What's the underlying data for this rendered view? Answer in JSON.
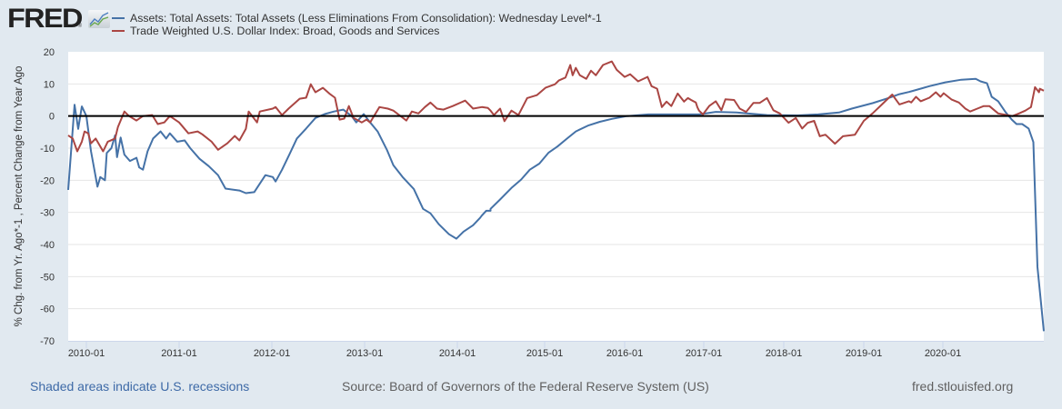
{
  "header": {
    "logo_text": "FRED",
    "logo_reg": "®",
    "logo_icon": "line-chart-icon"
  },
  "legend": [
    {
      "label": "Assets: Total Assets: Total Assets (Less Eliminations From Consolidation): Wednesday Level*-1",
      "color": "#4572a7"
    },
    {
      "label": "Trade Weighted U.S. Dollar Index: Broad, Goods and Services",
      "color": "#aa4643"
    }
  ],
  "footer": {
    "recessions_note": "Shaded areas indicate U.S. recessions",
    "source": "Source: Board of Governors of the Federal Reserve System (US)",
    "site": "fred.stlouisfed.org"
  },
  "chart_data": {
    "type": "line",
    "title": "",
    "xlabel": "",
    "ylabel": "% Chg. from Yr. Ago*-1 , Percent Change from Year Ago",
    "ylim": [
      -70,
      20
    ],
    "xlim": [
      "2009-10",
      "2020-04"
    ],
    "yticks": [
      20,
      10,
      0,
      -10,
      -20,
      -30,
      -40,
      -50,
      -60,
      -70
    ],
    "xticks": [
      "2010-01",
      "2011-01",
      "2012-01",
      "2013-01",
      "2014-01",
      "2015-01",
      "2016-01",
      "2017-01",
      "2018-01",
      "2019-01",
      "2020-01"
    ],
    "grid": true,
    "zero_line": true,
    "legend_position": "top",
    "series": [
      {
        "name": "Assets: Total Assets: Total Assets (Less Eliminations From Consolidation): Wednesday Level*-1",
        "color": "#4572a7",
        "points": [
          [
            2009.8,
            -23
          ],
          [
            2009.87,
            3.5
          ],
          [
            2009.91,
            -4
          ],
          [
            2009.95,
            3
          ],
          [
            2010.0,
            0
          ],
          [
            2010.05,
            -11
          ],
          [
            2010.12,
            -22
          ],
          [
            2010.15,
            -19
          ],
          [
            2010.2,
            -20
          ],
          [
            2010.22,
            -11.5
          ],
          [
            2010.27,
            -10
          ],
          [
            2010.31,
            -6
          ],
          [
            2010.33,
            -12.8
          ],
          [
            2010.37,
            -6.7
          ],
          [
            2010.41,
            -12
          ],
          [
            2010.47,
            -14
          ],
          [
            2010.54,
            -13
          ],
          [
            2010.57,
            -16
          ],
          [
            2010.61,
            -16.7
          ],
          [
            2010.66,
            -11
          ],
          [
            2010.72,
            -7
          ],
          [
            2010.8,
            -4.8
          ],
          [
            2010.86,
            -7
          ],
          [
            2010.9,
            -5.4
          ],
          [
            2010.98,
            -8
          ],
          [
            2011.06,
            -7.6
          ],
          [
            2011.12,
            -10
          ],
          [
            2011.22,
            -13.3
          ],
          [
            2011.32,
            -15.6
          ],
          [
            2011.42,
            -18.4
          ],
          [
            2011.5,
            -22.6
          ],
          [
            2011.65,
            -23.2
          ],
          [
            2011.72,
            -24
          ],
          [
            2011.81,
            -23.7
          ],
          [
            2011.93,
            -18.4
          ],
          [
            2012.01,
            -19
          ],
          [
            2012.04,
            -20.4
          ],
          [
            2012.11,
            -16.7
          ],
          [
            2012.19,
            -11.9
          ],
          [
            2012.27,
            -7
          ],
          [
            2012.37,
            -3.9
          ],
          [
            2012.47,
            -0.6
          ],
          [
            2012.57,
            0.6
          ],
          [
            2012.67,
            1.4
          ],
          [
            2012.77,
            2
          ],
          [
            2012.86,
            0
          ],
          [
            2012.91,
            -2
          ],
          [
            2012.99,
            0.6
          ],
          [
            2013.06,
            -2
          ],
          [
            2013.14,
            -4.8
          ],
          [
            2013.24,
            -10.5
          ],
          [
            2013.31,
            -15.3
          ],
          [
            2013.41,
            -19
          ],
          [
            2013.53,
            -22.7
          ],
          [
            2013.63,
            -28.9
          ],
          [
            2013.71,
            -30.3
          ],
          [
            2013.8,
            -33.7
          ],
          [
            2013.91,
            -36.8
          ],
          [
            2013.99,
            -38.2
          ],
          [
            2014.07,
            -36
          ],
          [
            2014.18,
            -34
          ],
          [
            2014.26,
            -31.7
          ],
          [
            2014.33,
            -29.5
          ],
          [
            2014.38,
            -29.5
          ],
          [
            2014.28,
            -31
          ],
          [
            2014.38,
            -28.9
          ],
          [
            2014.49,
            -26
          ],
          [
            2014.62,
            -22.4
          ],
          [
            2014.73,
            -19.8
          ],
          [
            2014.83,
            -16.7
          ],
          [
            2014.94,
            -14.8
          ],
          [
            2015.05,
            -11.4
          ],
          [
            2015.16,
            -9.5
          ],
          [
            2015.27,
            -7.2
          ],
          [
            2015.39,
            -4.8
          ],
          [
            2015.55,
            -2.9
          ],
          [
            2015.69,
            -1.8
          ],
          [
            2015.84,
            -0.9
          ],
          [
            2016.03,
            0
          ],
          [
            2016.3,
            0.5
          ],
          [
            2016.63,
            0.5
          ],
          [
            2016.94,
            0.5
          ],
          [
            2017.15,
            1.3
          ],
          [
            2017.41,
            1.1
          ],
          [
            2017.79,
            0.3
          ],
          [
            2018.17,
            0.2
          ],
          [
            2018.43,
            0.5
          ],
          [
            2018.69,
            1.1
          ],
          [
            2018.85,
            2.3
          ],
          [
            2019.11,
            4
          ],
          [
            2019.31,
            5.6
          ],
          [
            2019.57,
            7.5
          ],
          [
            2019.45,
            6.8
          ],
          [
            2019.6,
            7.7
          ],
          [
            2019.83,
            9.3
          ],
          [
            2020.03,
            10.5
          ],
          [
            2020.23,
            11.3
          ],
          [
            2020.41,
            11.6
          ],
          [
            2020.47,
            10.8
          ],
          [
            2020.55,
            10.2
          ],
          [
            2020.61,
            6
          ],
          [
            2020.69,
            4.6
          ],
          [
            2020.78,
            1.3
          ],
          [
            2020.86,
            -1.1
          ],
          [
            2020.92,
            -2.5
          ],
          [
            2020.99,
            -2.5
          ],
          [
            2021.07,
            -3.9
          ],
          [
            2021.13,
            -8.1
          ],
          [
            2021.18,
            -47
          ],
          [
            2021.26,
            -67
          ]
        ]
      },
      {
        "name": "Trade Weighted U.S. Dollar Index: Broad, Goods and Services",
        "color": "#aa4643",
        "points": [
          [
            2009.8,
            -6
          ],
          [
            2009.85,
            -7
          ],
          [
            2009.9,
            -11
          ],
          [
            2009.95,
            -8
          ],
          [
            2009.98,
            -4.8
          ],
          [
            2010.02,
            -5.4
          ],
          [
            2010.05,
            -8.5
          ],
          [
            2010.1,
            -7
          ],
          [
            2010.18,
            -11
          ],
          [
            2010.23,
            -8
          ],
          [
            2010.31,
            -7
          ],
          [
            2010.34,
            -3.4
          ],
          [
            2010.41,
            1.4
          ],
          [
            2010.46,
            0
          ],
          [
            2010.54,
            -1.4
          ],
          [
            2010.61,
            0
          ],
          [
            2010.71,
            0.3
          ],
          [
            2010.77,
            -2.5
          ],
          [
            2010.84,
            -2
          ],
          [
            2010.9,
            0
          ],
          [
            2011.0,
            -2
          ],
          [
            2011.1,
            -5.4
          ],
          [
            2011.2,
            -4.8
          ],
          [
            2011.25,
            -5.7
          ],
          [
            2011.35,
            -8
          ],
          [
            2011.42,
            -10.5
          ],
          [
            2011.52,
            -8.5
          ],
          [
            2011.6,
            -6.2
          ],
          [
            2011.65,
            -7.6
          ],
          [
            2011.72,
            -4
          ],
          [
            2011.75,
            1.4
          ],
          [
            2011.84,
            -2
          ],
          [
            2011.87,
            1.4
          ],
          [
            2012.01,
            2.3
          ],
          [
            2012.04,
            2.8
          ],
          [
            2012.11,
            0.3
          ],
          [
            2012.18,
            2.3
          ],
          [
            2012.3,
            5.4
          ],
          [
            2012.37,
            5.7
          ],
          [
            2012.42,
            9.9
          ],
          [
            2012.47,
            7.4
          ],
          [
            2012.55,
            8.8
          ],
          [
            2012.62,
            7
          ],
          [
            2012.68,
            5.7
          ],
          [
            2012.73,
            -1.1
          ],
          [
            2012.78,
            -0.8
          ],
          [
            2012.83,
            3.1
          ],
          [
            2012.88,
            -0.6
          ],
          [
            2012.97,
            -2
          ],
          [
            2013.02,
            -1.1
          ],
          [
            2013.06,
            -2
          ],
          [
            2013.16,
            2.8
          ],
          [
            2013.25,
            2.3
          ],
          [
            2013.31,
            1.7
          ],
          [
            2013.45,
            -1.4
          ],
          [
            2013.51,
            1.4
          ],
          [
            2013.58,
            0.8
          ],
          [
            2013.65,
            2.8
          ],
          [
            2013.71,
            4.2
          ],
          [
            2013.78,
            2.3
          ],
          [
            2013.85,
            2
          ],
          [
            2013.95,
            3.1
          ],
          [
            2014.09,
            4.8
          ],
          [
            2014.18,
            2.3
          ],
          [
            2014.28,
            2.8
          ],
          [
            2014.38,
            1.7
          ],
          [
            2014.35,
            2.5
          ],
          [
            2014.42,
            0.3
          ],
          [
            2014.49,
            2.3
          ],
          [
            2014.54,
            -1.6
          ],
          [
            2014.62,
            1.7
          ],
          [
            2014.7,
            0.3
          ],
          [
            2014.8,
            5.6
          ],
          [
            2014.91,
            6.5
          ],
          [
            2015.01,
            8.8
          ],
          [
            2015.13,
            9.9
          ],
          [
            2015.18,
            11.1
          ],
          [
            2015.26,
            12
          ],
          [
            2015.32,
            15.9
          ],
          [
            2015.35,
            12.7
          ],
          [
            2015.39,
            15
          ],
          [
            2015.44,
            12.7
          ],
          [
            2015.52,
            11.6
          ],
          [
            2015.58,
            14.1
          ],
          [
            2015.64,
            12.7
          ],
          [
            2015.73,
            15.9
          ],
          [
            2015.84,
            17
          ],
          [
            2015.9,
            14.4
          ],
          [
            2016.0,
            12.2
          ],
          [
            2016.07,
            13
          ],
          [
            2016.17,
            10.8
          ],
          [
            2016.29,
            12.2
          ],
          [
            2016.34,
            9.3
          ],
          [
            2016.41,
            8.5
          ],
          [
            2016.47,
            2.8
          ],
          [
            2016.53,
            4.5
          ],
          [
            2016.59,
            3.1
          ],
          [
            2016.67,
            7
          ],
          [
            2016.75,
            4.5
          ],
          [
            2016.8,
            5.6
          ],
          [
            2016.9,
            4.2
          ],
          [
            2016.94,
            1.7
          ],
          [
            2016.84,
            5
          ],
          [
            2016.92,
            2.7
          ],
          [
            2016.99,
            0.5
          ],
          [
            2017.07,
            3.2
          ],
          [
            2017.15,
            4.6
          ],
          [
            2017.22,
            1.8
          ],
          [
            2017.27,
            5.2
          ],
          [
            2017.38,
            5
          ],
          [
            2017.45,
            2.3
          ],
          [
            2017.53,
            1.3
          ],
          [
            2017.62,
            4.1
          ],
          [
            2017.7,
            4.1
          ],
          [
            2017.79,
            5.6
          ],
          [
            2017.87,
            1.8
          ],
          [
            2017.95,
            0.8
          ],
          [
            2018.06,
            -2.1
          ],
          [
            2018.15,
            -0.6
          ],
          [
            2018.23,
            -3.9
          ],
          [
            2018.3,
            -2.1
          ],
          [
            2018.38,
            -1.5
          ],
          [
            2018.45,
            -6.3
          ],
          [
            2018.52,
            -5.8
          ],
          [
            2018.64,
            -8.6
          ],
          [
            2018.74,
            -6.3
          ],
          [
            2018.89,
            -5.8
          ],
          [
            2019.0,
            -1.5
          ],
          [
            2019.11,
            0.8
          ],
          [
            2019.23,
            3.6
          ],
          [
            2019.36,
            6.7
          ],
          [
            2019.45,
            3.6
          ],
          [
            2019.57,
            4.6
          ],
          [
            2019.6,
            4.2
          ],
          [
            2019.66,
            6
          ],
          [
            2019.72,
            4.6
          ],
          [
            2019.83,
            5.7
          ],
          [
            2019.91,
            7.4
          ],
          [
            2019.97,
            6
          ],
          [
            2020.01,
            7.1
          ],
          [
            2020.11,
            5.1
          ],
          [
            2020.2,
            4.2
          ],
          [
            2020.28,
            2.3
          ],
          [
            2020.34,
            1.4
          ],
          [
            2020.43,
            2.3
          ],
          [
            2020.51,
            3.1
          ],
          [
            2020.58,
            3.1
          ],
          [
            2020.69,
            0.8
          ],
          [
            2020.8,
            0.3
          ],
          [
            2020.87,
            0
          ],
          [
            2020.95,
            0.8
          ],
          [
            2021.03,
            1.7
          ],
          [
            2021.1,
            2.8
          ],
          [
            2021.15,
            9
          ],
          [
            2021.2,
            7.4
          ],
          [
            2021.21,
            8.5
          ],
          [
            2021.26,
            7.9
          ]
        ]
      }
    ]
  }
}
